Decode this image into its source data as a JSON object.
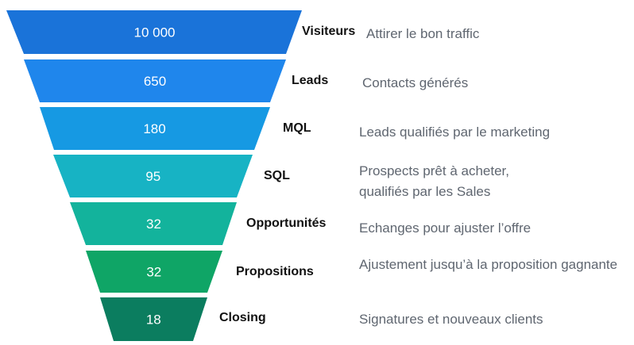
{
  "funnel": {
    "stages": [
      {
        "name": "Visiteurs",
        "value": "10 000",
        "description": [
          "Attirer le bon traffic"
        ],
        "color": "#1a73d9"
      },
      {
        "name": "Leads",
        "value": "650",
        "description": [
          "Contacts générés"
        ],
        "color": "#1f86ec"
      },
      {
        "name": "MQL",
        "value": "180",
        "description": [
          "Leads qualifiés par le marketing"
        ],
        "color": "#1699e3"
      },
      {
        "name": "SQL",
        "value": "95",
        "description": [
          "Prospects prêt à acheter,",
          "qualifiés par les Sales"
        ],
        "color": "#17b3c4"
      },
      {
        "name": "Opportunités",
        "value": "32",
        "description": [
          "Echanges pour ajuster l’offre"
        ],
        "color": "#13b39c"
      },
      {
        "name": "Propositions",
        "value": "32",
        "description": [
          "Ajustement jusqu’à la proposition gagnante"
        ],
        "color": "#0fa566"
      },
      {
        "name": "Closing",
        "value": "18",
        "description": [
          "Signatures et nouveaux clients"
        ],
        "color": "#0b7d5f"
      }
    ]
  }
}
